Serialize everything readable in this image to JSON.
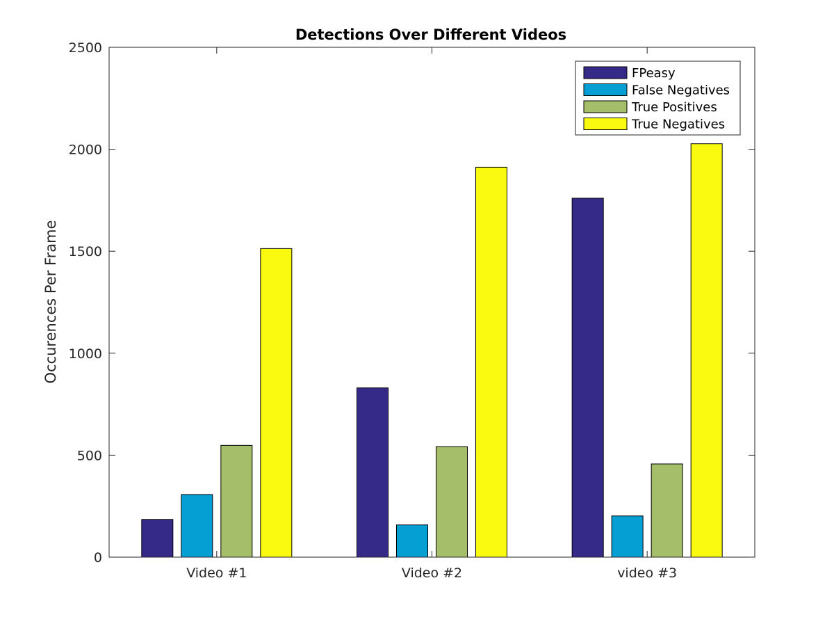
{
  "chart_data": {
    "type": "bar",
    "title": "Detections Over Different Videos",
    "xlabel": "",
    "ylabel": "Occurences Per Frame",
    "categories": [
      "Video #1",
      "Video #2",
      "video #3"
    ],
    "ylim": [
      0,
      2500
    ],
    "yticks": [
      0,
      500,
      1000,
      1500,
      2000,
      2500
    ],
    "grid": false,
    "legend_position": "top-right",
    "series": [
      {
        "name": "FPeasy",
        "color": "#352a87",
        "values": [
          185,
          830,
          1760
        ]
      },
      {
        "name": "False Negatives",
        "color": "#069fd4",
        "values": [
          307,
          158,
          202
        ]
      },
      {
        "name": "True Positives",
        "color": "#a5be6a",
        "values": [
          548,
          542,
          457
        ]
      },
      {
        "name": "True Negatives",
        "color": "#f9fa0f",
        "values": [
          1513,
          1912,
          2027
        ]
      }
    ]
  }
}
